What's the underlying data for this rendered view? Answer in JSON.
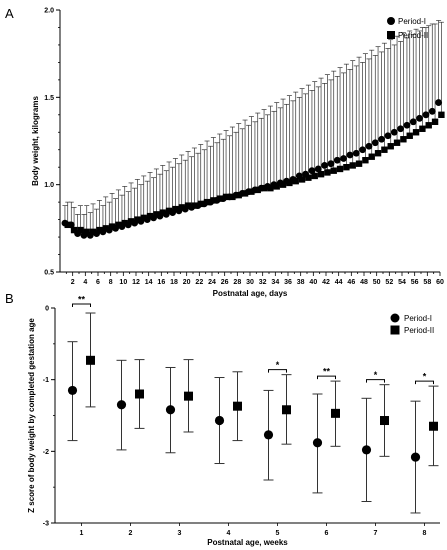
{
  "chart_data": [
    {
      "panel_label": "A",
      "type": "scatter",
      "xlabel": "Postnatal age, days",
      "ylabel": "Body weight, kilograms",
      "xlim": [
        0,
        60
      ],
      "ylim": [
        0.5,
        2.0
      ],
      "xticks": [
        2,
        4,
        6,
        8,
        10,
        12,
        14,
        16,
        18,
        20,
        22,
        24,
        26,
        28,
        30,
        32,
        34,
        36,
        38,
        40,
        42,
        44,
        46,
        48,
        50,
        52,
        54,
        56,
        58,
        60
      ],
      "yticks": [
        0.5,
        1.0,
        1.5,
        2.0
      ],
      "ytick_labels": [
        "0.5",
        "1.0",
        "1.5",
        "2.0"
      ],
      "legend_position": "top-right",
      "error_bars": "upper whisker only",
      "series": [
        {
          "name": "Period-I",
          "marker": "circle",
          "x": [
            1,
            2,
            3,
            4,
            5,
            6,
            7,
            8,
            9,
            10,
            11,
            12,
            13,
            14,
            15,
            16,
            17,
            18,
            19,
            20,
            21,
            22,
            23,
            24,
            25,
            26,
            27,
            28,
            29,
            30,
            31,
            32,
            33,
            34,
            35,
            36,
            37,
            38,
            39,
            40,
            41,
            42,
            43,
            44,
            45,
            46,
            47,
            48,
            49,
            50,
            51,
            52,
            53,
            54,
            55,
            56,
            57,
            58,
            59,
            60
          ],
          "y": [
            0.78,
            0.77,
            0.72,
            0.71,
            0.71,
            0.72,
            0.73,
            0.74,
            0.75,
            0.76,
            0.77,
            0.78,
            0.79,
            0.8,
            0.81,
            0.82,
            0.83,
            0.84,
            0.85,
            0.86,
            0.87,
            0.88,
            0.89,
            0.9,
            0.91,
            0.92,
            0.93,
            0.94,
            0.95,
            0.96,
            0.97,
            0.98,
            0.99,
            1.0,
            1.01,
            1.02,
            1.03,
            1.05,
            1.06,
            1.08,
            1.09,
            1.11,
            1.12,
            1.14,
            1.15,
            1.17,
            1.18,
            1.2,
            1.22,
            1.24,
            1.26,
            1.28,
            1.3,
            1.32,
            1.34,
            1.36,
            1.38,
            1.4,
            1.42,
            1.47
          ],
          "upper": [
            0.88,
            0.9,
            0.83,
            0.83,
            0.84,
            0.86,
            0.88,
            0.9,
            0.92,
            0.94,
            0.96,
            0.98,
            1.0,
            1.02,
            1.04,
            1.06,
            1.08,
            1.1,
            1.12,
            1.14,
            1.16,
            1.18,
            1.2,
            1.22,
            1.24,
            1.26,
            1.28,
            1.3,
            1.32,
            1.34,
            1.36,
            1.38,
            1.4,
            1.42,
            1.44,
            1.46,
            1.48,
            1.5,
            1.52,
            1.54,
            1.56,
            1.58,
            1.6,
            1.62,
            1.64,
            1.66,
            1.68,
            1.7,
            1.72,
            1.74,
            1.76,
            1.78,
            1.8,
            1.82,
            1.84,
            1.86,
            1.88,
            1.9,
            1.92,
            1.94
          ]
        },
        {
          "name": "Period-II",
          "marker": "square",
          "x": [
            1,
            2,
            3,
            4,
            5,
            6,
            7,
            8,
            9,
            10,
            11,
            12,
            13,
            14,
            15,
            16,
            17,
            18,
            19,
            20,
            21,
            22,
            23,
            24,
            25,
            26,
            27,
            28,
            29,
            30,
            31,
            32,
            33,
            34,
            35,
            36,
            37,
            38,
            39,
            40,
            41,
            42,
            43,
            44,
            45,
            46,
            47,
            48,
            49,
            50,
            51,
            52,
            53,
            54,
            55,
            56,
            57,
            58,
            59,
            60
          ],
          "y": [
            0.77,
            0.74,
            0.74,
            0.73,
            0.73,
            0.74,
            0.75,
            0.76,
            0.77,
            0.78,
            0.79,
            0.8,
            0.81,
            0.82,
            0.83,
            0.84,
            0.85,
            0.86,
            0.87,
            0.88,
            0.88,
            0.89,
            0.9,
            0.91,
            0.92,
            0.93,
            0.93,
            0.94,
            0.95,
            0.96,
            0.97,
            0.98,
            0.98,
            0.99,
            1.0,
            1.01,
            1.02,
            1.03,
            1.04,
            1.05,
            1.06,
            1.07,
            1.08,
            1.09,
            1.1,
            1.11,
            1.12,
            1.14,
            1.16,
            1.18,
            1.2,
            1.22,
            1.24,
            1.26,
            1.28,
            1.3,
            1.32,
            1.34,
            1.36,
            1.4
          ],
          "upper": [
            0.9,
            0.87,
            0.88,
            0.88,
            0.89,
            0.91,
            0.93,
            0.95,
            0.97,
            0.99,
            1.01,
            1.03,
            1.05,
            1.07,
            1.09,
            1.11,
            1.13,
            1.15,
            1.17,
            1.19,
            1.21,
            1.23,
            1.25,
            1.27,
            1.29,
            1.31,
            1.33,
            1.35,
            1.37,
            1.39,
            1.41,
            1.43,
            1.45,
            1.47,
            1.49,
            1.51,
            1.53,
            1.55,
            1.57,
            1.59,
            1.61,
            1.63,
            1.65,
            1.67,
            1.69,
            1.71,
            1.73,
            1.75,
            1.77,
            1.79,
            1.81,
            1.83,
            1.85,
            1.87,
            1.88,
            1.89,
            1.9,
            1.91,
            1.92,
            1.93
          ]
        }
      ]
    },
    {
      "panel_label": "B",
      "type": "scatter",
      "xlabel": "Postnatal age, weeks",
      "ylabel": "Z score of body weight by completed gestation age",
      "categories": [
        "1",
        "2",
        "3",
        "4",
        "5",
        "6",
        "7",
        "8"
      ],
      "ylim": [
        -3,
        0
      ],
      "yticks": [
        0,
        -1,
        -2,
        -3
      ],
      "ytick_labels": [
        "0",
        "-1",
        "-2",
        "-3"
      ],
      "legend_position": "top-right",
      "error_bars": "mean ± SD",
      "series": [
        {
          "name": "Period-I",
          "marker": "circle",
          "values": [
            -1.15,
            -1.35,
            -1.42,
            -1.57,
            -1.77,
            -1.88,
            -1.98,
            -2.08
          ],
          "lower": [
            -1.85,
            -1.98,
            -2.02,
            -2.17,
            -2.4,
            -2.58,
            -2.7,
            -2.86
          ],
          "upper": [
            -0.47,
            -0.73,
            -0.83,
            -0.97,
            -1.15,
            -1.2,
            -1.26,
            -1.3
          ]
        },
        {
          "name": "Period-II",
          "marker": "square",
          "values": [
            -0.73,
            -1.2,
            -1.23,
            -1.37,
            -1.42,
            -1.47,
            -1.57,
            -1.65
          ],
          "lower": [
            -1.38,
            -1.68,
            -1.73,
            -1.85,
            -1.9,
            -1.93,
            -2.07,
            -2.2
          ],
          "upper": [
            -0.07,
            -0.72,
            -0.72,
            -0.89,
            -0.93,
            -1.02,
            -1.07,
            -1.09
          ]
        }
      ],
      "significance": [
        {
          "category": "1",
          "label": "**"
        },
        {
          "category": "5",
          "label": "*"
        },
        {
          "category": "6",
          "label": "**"
        },
        {
          "category": "7",
          "label": "*"
        },
        {
          "category": "8",
          "label": "*"
        }
      ]
    }
  ]
}
